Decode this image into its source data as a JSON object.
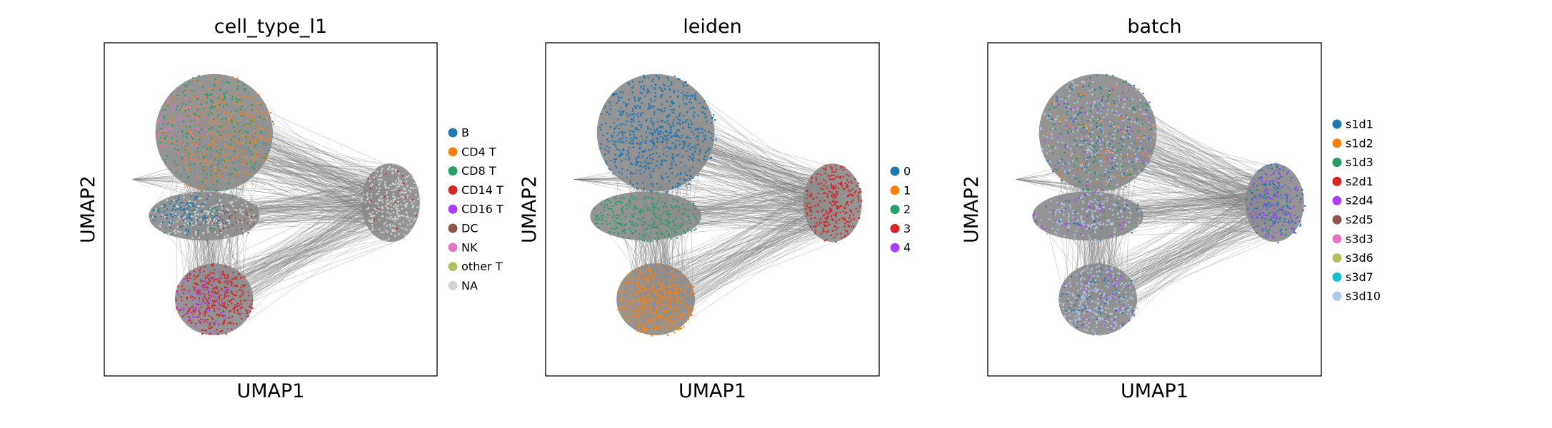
{
  "chart_data": [
    {
      "type": "scatter",
      "embedding": "umap",
      "title": "cell_type_l1",
      "xlabel": "UMAP1",
      "ylabel": "UMAP2",
      "ticks": false,
      "grid": false,
      "legend_placement": "right-outside",
      "edges_color": "#808080",
      "legend": [
        {
          "label": "B",
          "color": "#1f77b4"
        },
        {
          "label": "CD4 T",
          "color": "#ff7f0e"
        },
        {
          "label": "CD8 T",
          "color": "#279e68"
        },
        {
          "label": "CD14 T",
          "color": "#d62728"
        },
        {
          "label": "CD16 T",
          "color": "#aa40fc"
        },
        {
          "label": "DC",
          "color": "#8c564b"
        },
        {
          "label": "NK",
          "color": "#e377c2"
        },
        {
          "label": "other T",
          "color": "#b5bd61"
        },
        {
          "label": "NA",
          "color": "#d3d3d3"
        }
      ]
    },
    {
      "type": "scatter",
      "embedding": "umap",
      "title": "leiden",
      "xlabel": "UMAP1",
      "ylabel": "UMAP2",
      "ticks": false,
      "grid": false,
      "legend_placement": "right-outside",
      "edges_color": "#808080",
      "legend": [
        {
          "label": "0",
          "color": "#1f77b4"
        },
        {
          "label": "1",
          "color": "#ff7f0e"
        },
        {
          "label": "2",
          "color": "#279e68"
        },
        {
          "label": "3",
          "color": "#d62728"
        },
        {
          "label": "4",
          "color": "#aa40fc"
        }
      ]
    },
    {
      "type": "scatter",
      "embedding": "umap",
      "title": "batch",
      "xlabel": "UMAP1",
      "ylabel": "UMAP2",
      "ticks": false,
      "grid": false,
      "legend_placement": "right-outside",
      "edges_color": "#808080",
      "legend": [
        {
          "label": "s1d1",
          "color": "#1f77b4"
        },
        {
          "label": "s1d2",
          "color": "#ff7f0e"
        },
        {
          "label": "s1d3",
          "color": "#279e68"
        },
        {
          "label": "s2d1",
          "color": "#d62728"
        },
        {
          "label": "s2d4",
          "color": "#aa40fc"
        },
        {
          "label": "s2d5",
          "color": "#8c564b"
        },
        {
          "label": "s3d3",
          "color": "#e377c2"
        },
        {
          "label": "s3d6",
          "color": "#b5bd61"
        },
        {
          "label": "s3d7",
          "color": "#17becf"
        },
        {
          "label": "s3d10",
          "color": "#aec7e8"
        }
      ]
    }
  ]
}
